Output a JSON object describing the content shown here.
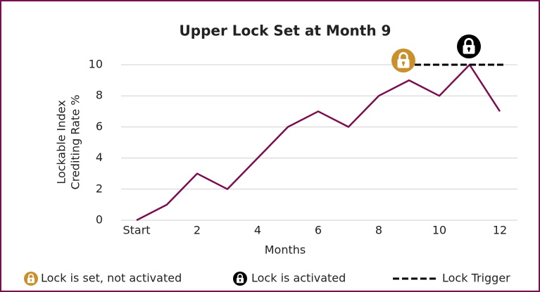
{
  "chart_data": {
    "type": "line",
    "title": "Upper Lock Set at Month 9",
    "x_label": "Months",
    "y_label": [
      "Lockable Index",
      "Crediting Rate %"
    ],
    "categories": [
      "Start",
      null,
      "2",
      null,
      "4",
      null,
      "6",
      null,
      "8",
      null,
      "10",
      null,
      "12"
    ],
    "series": [
      {
        "name": "Lockable Index Crediting Rate %",
        "color": "#7a0f4f",
        "values": [
          0,
          1,
          3,
          2,
          4,
          6,
          7,
          6,
          8,
          9,
          8,
          10,
          7
        ]
      }
    ],
    "ylim": [
      0,
      10
    ],
    "yticks": [
      0,
      2,
      4,
      6,
      8,
      10
    ],
    "grid": true,
    "trigger": {
      "name": "Lock Trigger",
      "value": 10,
      "from": 9,
      "to": 12,
      "color": "#000000"
    },
    "locks": [
      {
        "name": "Lock is set, not activated",
        "month": 9,
        "color": "#c8912e"
      },
      {
        "name": "Lock is activated",
        "month": 11,
        "color": "#000000"
      }
    ]
  }
}
